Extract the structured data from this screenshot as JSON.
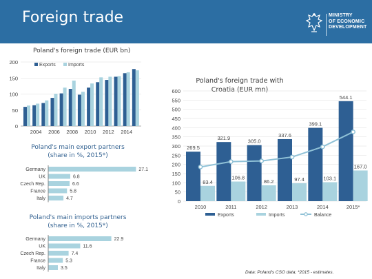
{
  "header": {
    "title": "Foreign trade",
    "ministry_lines": [
      "MINISTRY",
      "OF ECONOMIC",
      "DEVELOPMENT"
    ]
  },
  "colors": {
    "header_bg": "#2c6ea3",
    "exports": "#2e5f93",
    "imports": "#a9d3df",
    "balance": "#8fc1d6",
    "grid": "#dcdcdc"
  },
  "footnote": "Data: Poland's CSO data; *2015 - estimates.",
  "chart_data": [
    {
      "type": "bar",
      "title": "Poland's foreign trade (EUR bn)",
      "years": [
        2003,
        2004,
        2005,
        2006,
        2007,
        2008,
        2009,
        2010,
        2011,
        2012,
        2013,
        2014,
        2015
      ],
      "xticks": [
        "2004",
        "2006",
        "2008",
        "2010",
        "2012",
        "2014"
      ],
      "yticks": [
        0,
        50,
        100,
        150,
        200
      ],
      "ylim": [
        0,
        200
      ],
      "series": [
        {
          "name": "Exports",
          "values": [
            60,
            65,
            72,
            88,
            102,
            116,
            98,
            120,
            137,
            144,
            154,
            165,
            178
          ]
        },
        {
          "name": "Imports",
          "values": [
            64,
            70,
            80,
            101,
            120,
            142,
            107,
            133,
            152,
            154,
            156,
            168,
            174
          ]
        }
      ]
    },
    {
      "type": "bar",
      "title": "Poland's main export partners (share in %, 2015*)",
      "categories": [
        "Germany",
        "UK",
        "Czech Rep.",
        "France",
        "Italy"
      ],
      "values": [
        27.1,
        6.8,
        6.6,
        5.8,
        4.7
      ],
      "labels": [
        "27.1",
        "6.8",
        "6.6",
        "5.8",
        "4.7"
      ]
    },
    {
      "type": "bar",
      "title": "Poland's main imports partners (share in %, 2015*)",
      "categories": [
        "Germany",
        "UK",
        "Czech Rep.",
        "France",
        "Italy"
      ],
      "values": [
        22.9,
        11.6,
        7.4,
        5.3,
        3.5
      ],
      "labels": [
        "22.9",
        "11.6",
        "7.4",
        "5.3",
        "3.5"
      ]
    },
    {
      "type": "bar",
      "title": "Poland's foreign trade with Croatia (EUR mn)",
      "categories": [
        "2010",
        "2011",
        "2012",
        "2013",
        "2014",
        "2015*"
      ],
      "yticks": [
        0,
        50,
        100,
        150,
        200,
        250,
        300,
        350,
        400,
        450,
        500,
        550,
        600
      ],
      "ylim": [
        0,
        600
      ],
      "series": [
        {
          "name": "Exports",
          "values": [
            269.5,
            321.9,
            305.0,
            337.6,
            399.1,
            544.1
          ],
          "labels": [
            "269.5",
            "321.9",
            "305.0",
            "337.6",
            "399.1",
            "544.1"
          ]
        },
        {
          "name": "Imports",
          "values": [
            83.4,
            106.8,
            86.2,
            97.4,
            103.1,
            167.0
          ],
          "labels": [
            "83.4",
            "106.8",
            "86.2",
            "97.4",
            "103.1",
            "167.0"
          ]
        },
        {
          "name": "Balance",
          "values": [
            186.1,
            215.1,
            218.8,
            240.2,
            296.0,
            377.1
          ]
        }
      ]
    }
  ]
}
